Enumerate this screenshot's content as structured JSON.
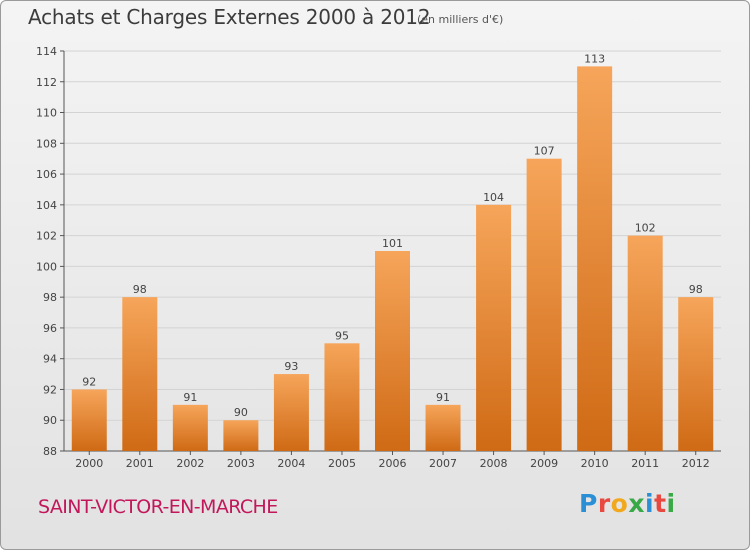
{
  "header": {
    "title": "Achats et Charges Externes 2000 à 2012",
    "subtitle": "(en milliers d'€)"
  },
  "footer": {
    "place": "SAINT-VICTOR-EN-MARCHE",
    "logo_text": "Proxiti"
  },
  "colors": {
    "bar_top": "#f6a55a",
    "bar_bottom": "#cf6a15",
    "place_text": "#c2185b",
    "axis": "#555555",
    "grid": "#d3d3d3"
  },
  "chart_data": {
    "type": "bar",
    "title": "Achats et Charges Externes 2000 à 2012",
    "subtitle": "(en milliers d'€)",
    "categories": [
      "2000",
      "2001",
      "2002",
      "2003",
      "2004",
      "2005",
      "2006",
      "2007",
      "2008",
      "2009",
      "2010",
      "2011",
      "2012"
    ],
    "values": [
      92,
      98,
      91,
      90,
      93,
      95,
      101,
      91,
      104,
      107,
      113,
      102,
      98
    ],
    "ylim": [
      88,
      114
    ],
    "yticks": [
      88,
      90,
      92,
      94,
      96,
      98,
      100,
      102,
      104,
      106,
      108,
      110,
      112,
      114
    ],
    "grid": true,
    "data_labels": true
  }
}
